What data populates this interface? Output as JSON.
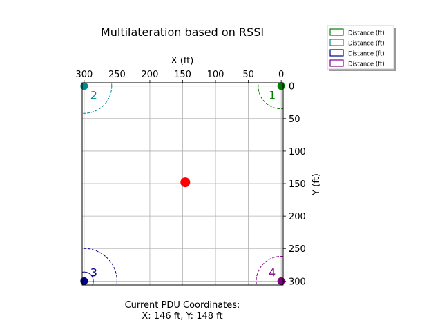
{
  "chart_data": {
    "type": "scatter",
    "title": "Multilateration based on RSSI",
    "xlabel": "X (ft)",
    "ylabel": "Y (ft)",
    "xlim": [
      303,
      -3
    ],
    "ylim": [
      306,
      -5
    ],
    "x_axis_position": "top",
    "y_axis_position": "right",
    "xticks": [
      300,
      250,
      200,
      150,
      100,
      50,
      0
    ],
    "yticks": [
      0,
      50,
      100,
      150,
      200,
      250,
      300
    ],
    "grid": true,
    "legend_position": "outside-top-right",
    "legend": [
      {
        "label": "Distance (ft)",
        "color": "#008000"
      },
      {
        "label": "Distance (ft)",
        "color": "#008b8b"
      },
      {
        "label": "Distance (ft)",
        "color": "#00008b"
      },
      {
        "label": "Distance (ft)",
        "color": "#800080"
      }
    ],
    "anchors": [
      {
        "label": "1",
        "x": 0,
        "y": 0,
        "color": "#008000",
        "radius": 35
      },
      {
        "label": "2",
        "x": 300,
        "y": 0,
        "color": "#008b8b",
        "radius": 42
      },
      {
        "label": "3",
        "x": 300,
        "y": 300,
        "color": "#00008b",
        "radius": 50
      },
      {
        "label": "4",
        "x": 0,
        "y": 300,
        "color": "#800080",
        "radius": 38
      }
    ],
    "anchor3_small_circle_radius": 14,
    "estimate": {
      "x": 146,
      "y": 148,
      "color": "#ff0000"
    }
  },
  "footer": {
    "line1": "Current PDU Coordinates:",
    "line2": "X: 146 ft, Y: 148 ft"
  }
}
